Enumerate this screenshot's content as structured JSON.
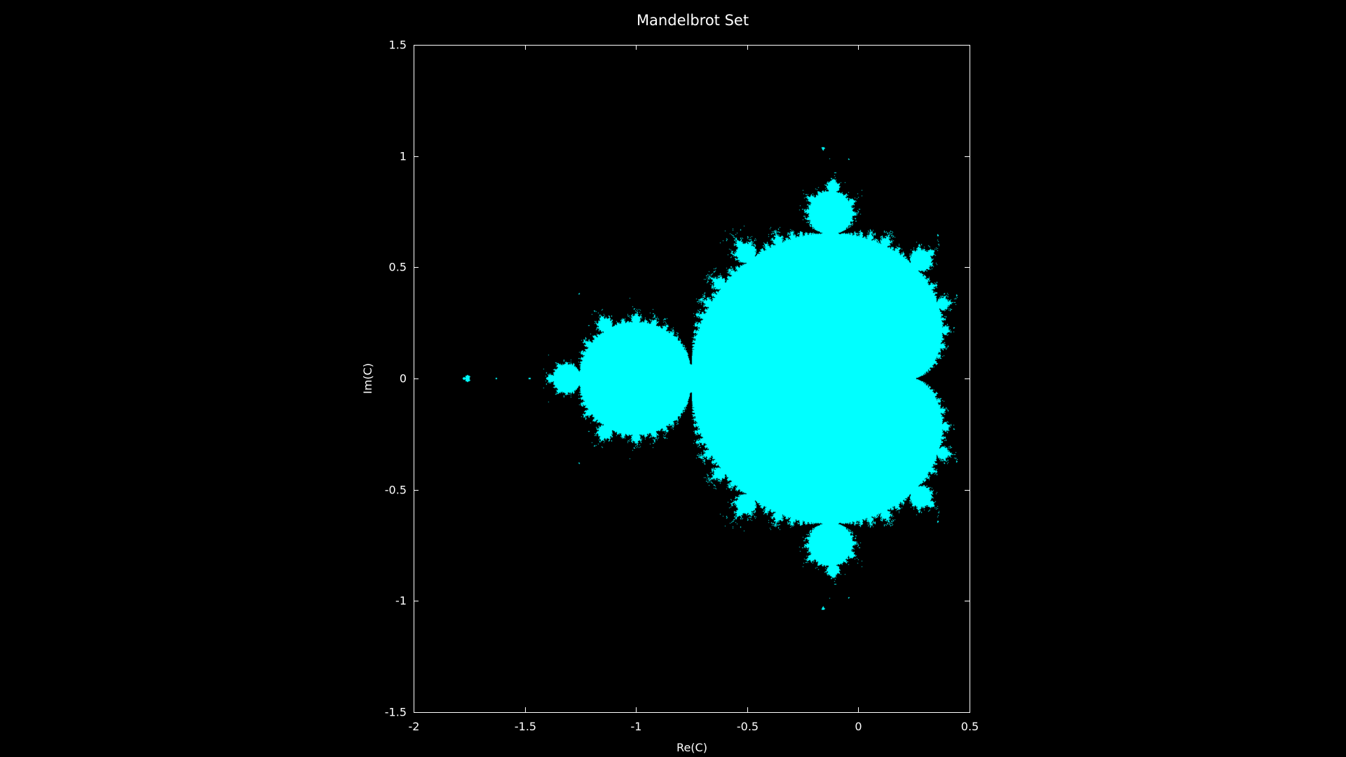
{
  "chart_data": {
    "type": "scatter",
    "title": "Mandelbrot Set",
    "xlabel": "Re(C)",
    "ylabel": "Im(C)",
    "xlim": [
      -2,
      0.5
    ],
    "ylim": [
      -1.5,
      1.5
    ],
    "xticks": [
      -2,
      -1.5,
      -1,
      -0.5,
      0,
      0.5
    ],
    "yticks": [
      -1.5,
      -1,
      -0.5,
      0,
      0.5,
      1,
      1.5
    ],
    "xtick_labels": [
      "-2",
      "-1.5",
      "-1",
      "-0.5",
      "0",
      "0.5"
    ],
    "ytick_labels": [
      "-1.5",
      "-1",
      "-0.5",
      "0",
      "0.5",
      "1",
      "1.5"
    ],
    "grid": false,
    "max_iterations": 50,
    "escape_radius": 2,
    "series": [
      {
        "description": "points c whose iteration z -> z^2 + c stays bounded",
        "color": "#00ffff"
      }
    ]
  },
  "colors": {
    "background": "#000000",
    "set": "#00ffff",
    "axes": "#ffffff",
    "text": "#ffffff"
  }
}
